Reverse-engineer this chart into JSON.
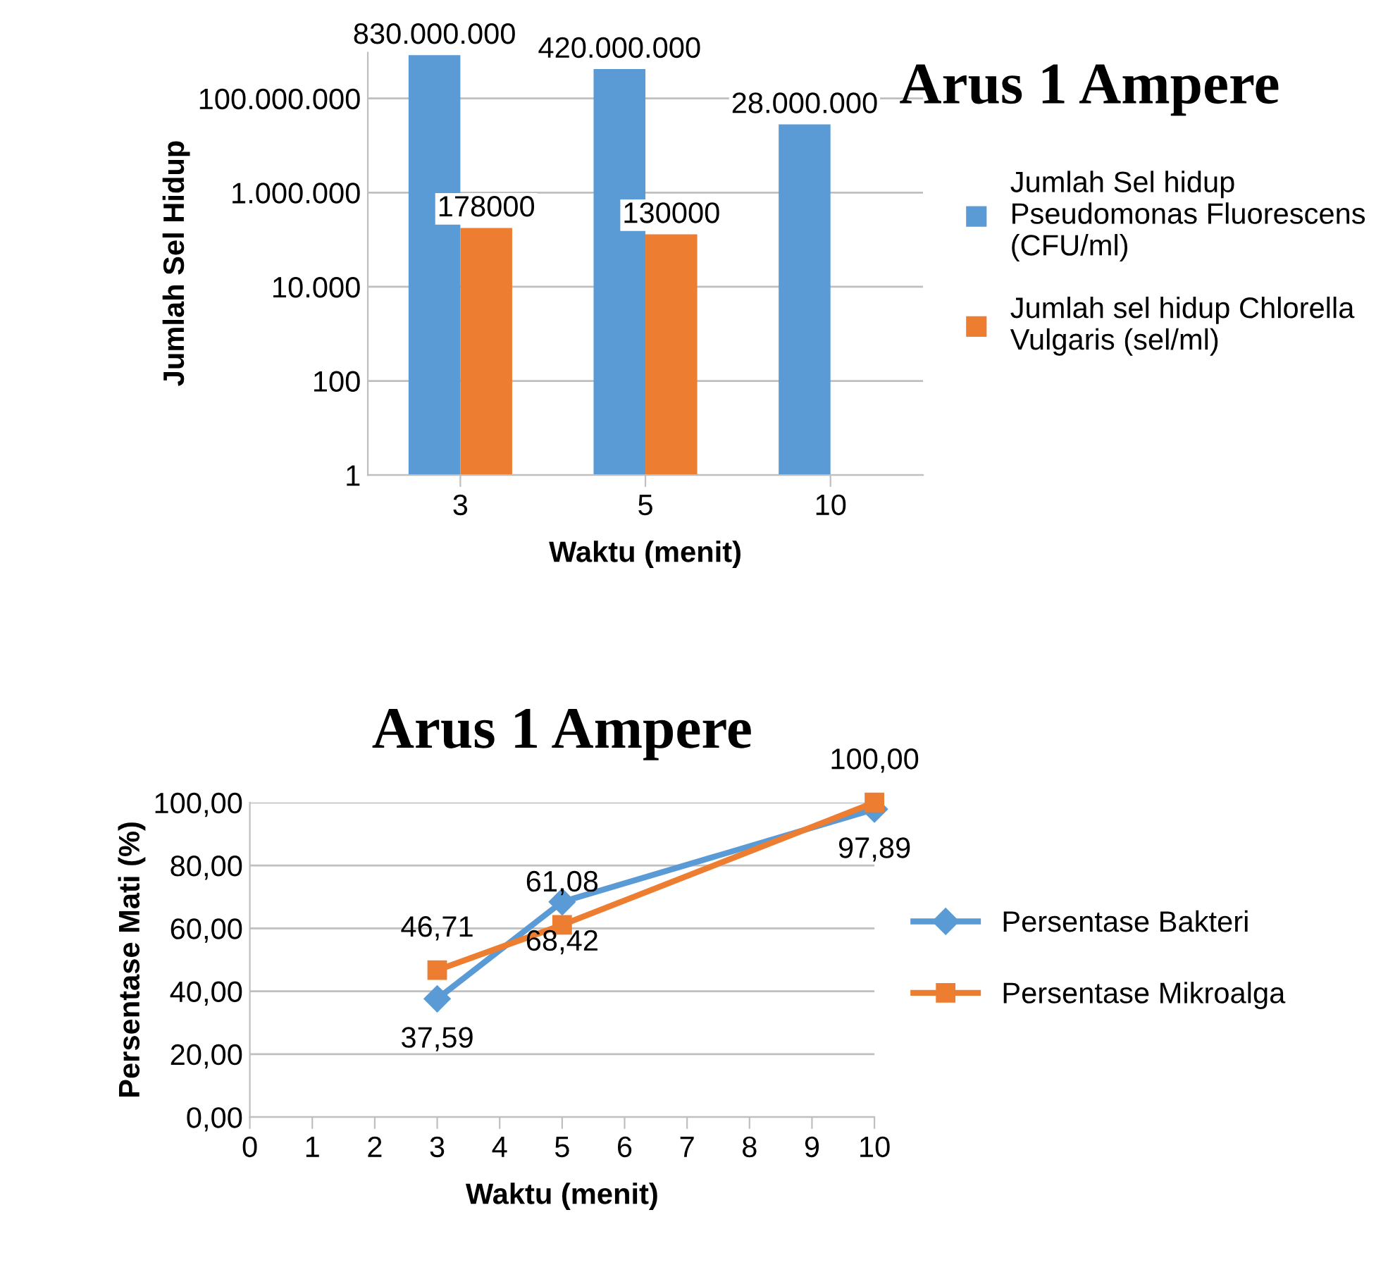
{
  "chart_data": [
    {
      "type": "bar",
      "title": "Arus 1 Ampere",
      "xlabel": "Waktu (menit)",
      "ylabel": "Jumlah Sel Hidup",
      "categories": [
        "3",
        "5",
        "10"
      ],
      "series": [
        {
          "name": "Jumlah Sel hidup Pseudomonas Fluorescens (CFU/ml)",
          "color": "#5b9bd5",
          "values": [
            830000000,
            420000000,
            28000000
          ],
          "value_labels": [
            "830.000.000",
            "420.000.000",
            "28.000.000"
          ]
        },
        {
          "name": "Jumlah sel hidup Chlorella Vulgaris (sel/ml)",
          "color": "#ed7d31",
          "values": [
            178000,
            130000,
            null
          ],
          "value_labels": [
            "178000",
            "130000",
            null
          ]
        }
      ],
      "log": "y",
      "ylim": [
        1,
        1000000000
      ],
      "yticks": [
        {
          "value": 1,
          "label": "1"
        },
        {
          "value": 100,
          "label": "100"
        },
        {
          "value": 10000,
          "label": "10.000"
        },
        {
          "value": 1000000,
          "label": "1.000.000"
        },
        {
          "value": 100000000,
          "label": "100.000.000"
        }
      ],
      "grid": "y",
      "legend": "right"
    },
    {
      "type": "line",
      "title": "Arus 1 Ampere",
      "xlabel": "Waktu (menit)",
      "ylabel": "Persentase Mati (%)",
      "x": [
        3,
        5,
        10
      ],
      "series": [
        {
          "name": "Persentase Bakteri",
          "color": "#5b9bd5",
          "values": [
            37.59,
            68.42,
            97.89
          ],
          "marker": "diamond",
          "value_labels": [
            "37,59",
            "68,42",
            "97,89"
          ]
        },
        {
          "name": "Persentase Mikroalga",
          "color": "#ed7d31",
          "values": [
            46.71,
            61.08,
            100.0
          ],
          "marker": "square",
          "value_labels": [
            "46,71",
            "61,08",
            "100,00"
          ]
        }
      ],
      "xlim": [
        0,
        10
      ],
      "xticks": [
        0,
        1,
        2,
        3,
        4,
        5,
        6,
        7,
        8,
        9,
        10
      ],
      "ylim": [
        0,
        100
      ],
      "yticks": [
        {
          "value": 0,
          "label": "0,00"
        },
        {
          "value": 20,
          "label": "20,00"
        },
        {
          "value": 40,
          "label": "40,00"
        },
        {
          "value": 60,
          "label": "60,00"
        },
        {
          "value": 80,
          "label": "80,00"
        },
        {
          "value": 100,
          "label": "100,00"
        }
      ],
      "grid": "y",
      "legend": "right"
    }
  ]
}
